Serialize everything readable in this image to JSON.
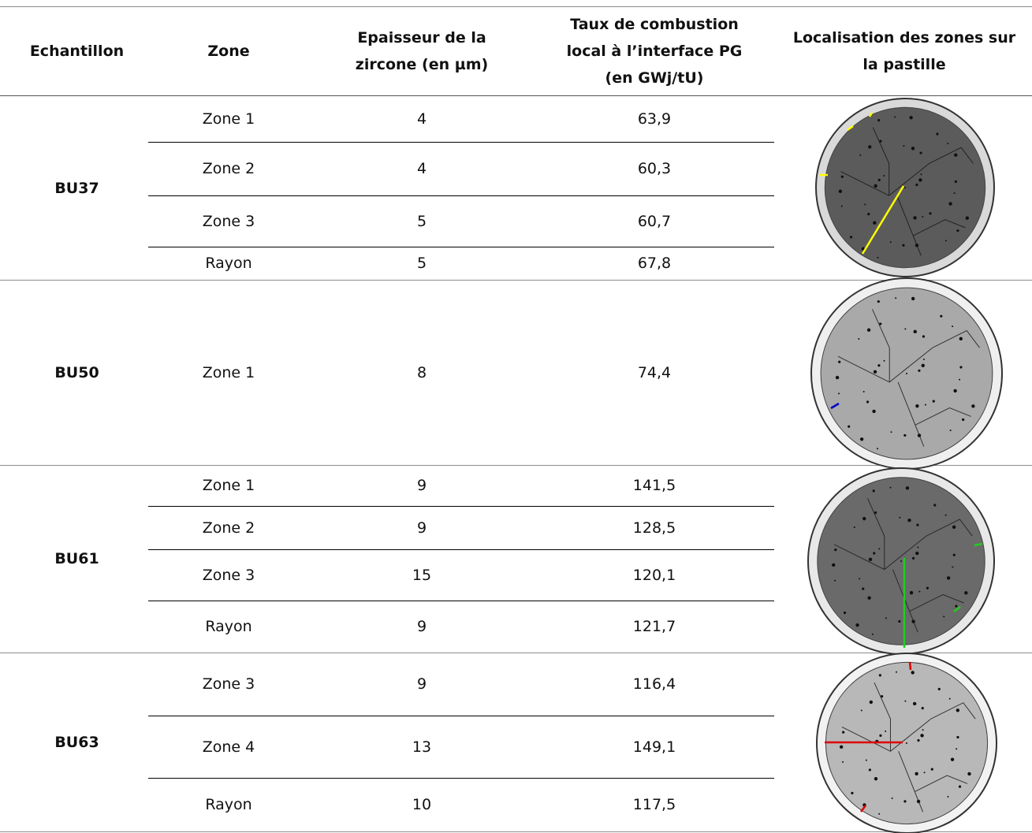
{
  "table": {
    "header": [
      "Echantillon",
      "Zone",
      "Epaisseur de la zircone (en µm)",
      "Taux de combustion local à l’interface PG (en GWj/tU)",
      "Localisation des zones sur la pastille"
    ],
    "groups": [
      {
        "sample": "BU37",
        "rows": [
          [
            "Zone 1",
            "4",
            "63,9"
          ],
          [
            "Zone 2",
            "4",
            "60,3"
          ],
          [
            "Zone 3",
            "5",
            "60,7"
          ],
          [
            "Rayon",
            "5",
            "67,8"
          ]
        ]
      },
      {
        "sample": "BU50",
        "rows": [
          [
            "Zone 1",
            "8",
            "74,4"
          ]
        ]
      },
      {
        "sample": "BU61",
        "rows": [
          [
            "Zone 1",
            "9",
            "141,5"
          ],
          [
            "Zone 2",
            "9",
            "128,5"
          ],
          [
            "Zone 3",
            "15",
            "120,1"
          ],
          [
            "Rayon",
            "9",
            "121,7"
          ]
        ]
      },
      {
        "sample": "BU63",
        "rows": [
          [
            "Zone 3",
            "9",
            "116,4"
          ],
          [
            "Zone 4",
            "13",
            "149,1"
          ],
          [
            "Rayon",
            "10",
            "117,5"
          ]
        ]
      }
    ]
  }
}
